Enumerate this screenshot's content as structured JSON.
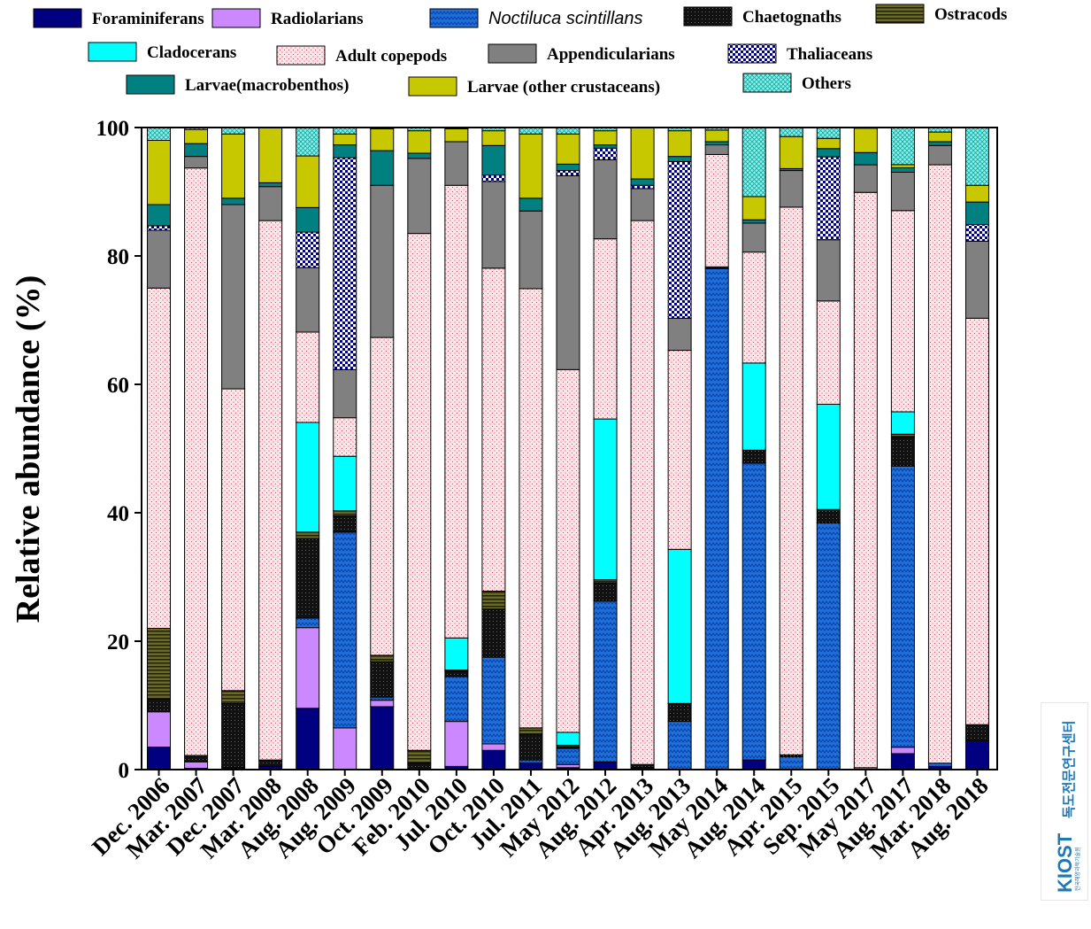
{
  "chart_data": {
    "type": "bar",
    "stacked": true,
    "title": "",
    "xlabel": "",
    "ylabel": "Relative abundance (%)",
    "ylim": [
      0,
      100
    ],
    "yticks": [
      "0",
      "20",
      "40",
      "60",
      "80",
      "100"
    ],
    "legend_position": "top",
    "categories": [
      "Dec. 2006",
      "Mar. 2007",
      "Dec. 2007",
      "Mar. 2008",
      "Aug. 2008",
      "Aug. 2009",
      "Oct. 2009",
      "Feb. 2010",
      "Jul. 2010",
      "Oct. 2010",
      "Jul. 2011",
      "May 2012",
      "Aug. 2012",
      "Apr. 2013",
      "Aug. 2013",
      "May 2014",
      "Aug. 2014",
      "Apr. 2015",
      "Sep. 2015",
      "May 2017",
      "Aug. 2017",
      "Mar. 2018",
      "Aug. 2018"
    ],
    "series": [
      {
        "name": "Foraminiferans",
        "color": "#000080",
        "pattern": "solid",
        "values": [
          3.5,
          0.2,
          0.3,
          0.5,
          9.5,
          0,
          9.8,
          0,
          0.5,
          3,
          1,
          0.3,
          1.2,
          0.3,
          0,
          0,
          1.5,
          0,
          0,
          0,
          2.5,
          0.5,
          4.5
        ]
      },
      {
        "name": "Radiolarians",
        "color": "#cc88ff",
        "pattern": "solid",
        "values": [
          5.5,
          1,
          0,
          0,
          12.5,
          6.5,
          1,
          0,
          7,
          1,
          0,
          0.5,
          0,
          0,
          0,
          0,
          0,
          0,
          0,
          0.3,
          1,
          0,
          0
        ]
      },
      {
        "name": "Noctiluca scintillans",
        "italic": true,
        "color": "#1f6fdb",
        "pattern": "zigzag",
        "values": [
          0,
          0,
          0,
          0,
          1.5,
          30.5,
          0.5,
          0,
          7,
          13.5,
          0.5,
          2.5,
          25,
          0,
          7.5,
          78,
          46,
          2,
          38.7,
          0,
          44,
          0.5,
          0
        ]
      },
      {
        "name": "Chaetognaths",
        "color": "#111111",
        "pattern": "dots",
        "values": [
          2,
          1,
          10,
          1,
          12.3,
          2.5,
          5.5,
          1,
          0.8,
          7.5,
          4,
          0.3,
          2.8,
          0.5,
          2.8,
          0.3,
          2,
          0.3,
          2.1,
          0,
          4.5,
          0,
          2.5
        ]
      },
      {
        "name": "Ostracods",
        "color": "#6b6b1f",
        "pattern": "stripes",
        "values": [
          11,
          0,
          2,
          0,
          1,
          0.8,
          1,
          2,
          0.2,
          2.8,
          1,
          0.2,
          0.5,
          0,
          0,
          0,
          0,
          0,
          0,
          0,
          0.5,
          0,
          0
        ]
      },
      {
        "name": "Cladocerans",
        "color": "#00ffff",
        "pattern": "solid",
        "values": [
          0,
          0,
          0,
          0,
          17,
          8.5,
          0,
          0,
          5,
          0,
          0,
          2,
          25,
          0,
          24,
          0,
          13.5,
          0,
          16.5,
          0,
          3.5,
          0,
          0
        ]
      },
      {
        "name": "Adult copepods",
        "color": "#ffd8de",
        "pattern": "pinkdots",
        "values": [
          53,
          91.5,
          47,
          84,
          14,
          6,
          49.5,
          80.5,
          70.5,
          50.3,
          68.4,
          56.5,
          28,
          84.7,
          31,
          17.5,
          17.2,
          85.3,
          16.2,
          89.6,
          31.5,
          93.2,
          63.3
        ]
      },
      {
        "name": "Appendicularians",
        "color": "#808080",
        "pattern": "solid",
        "values": [
          9,
          1.8,
          28.7,
          5.3,
          10,
          7.5,
          23.7,
          11.7,
          6.8,
          13.5,
          12.1,
          30.2,
          12.3,
          5,
          5,
          1.5,
          4.5,
          5.7,
          9.6,
          4.3,
          6,
          3,
          12
        ]
      },
      {
        "name": "Thaliaceans",
        "color": "#00008b",
        "pattern": "checker",
        "values": [
          0.7,
          0,
          0,
          0,
          5.5,
          33,
          0,
          0,
          0,
          1,
          0,
          0.8,
          1.8,
          0.5,
          24.4,
          0,
          0,
          0,
          13,
          0,
          0,
          0,
          2.6
        ]
      },
      {
        "name": "Larvae(macrobenthos)",
        "color": "#008080",
        "pattern": "solid",
        "values": [
          3.3,
          2,
          1,
          0.6,
          3.8,
          2,
          5.4,
          0.8,
          0,
          4.6,
          2,
          1,
          0.5,
          1,
          0.8,
          0.5,
          0.5,
          0.3,
          1.3,
          1.9,
          0.7,
          0.6,
          3.5
        ]
      },
      {
        "name": "Larvae (other crustaceans)",
        "color": "#c8c800",
        "pattern": "solid",
        "values": [
          10,
          2.2,
          10,
          8.6,
          8,
          1.7,
          3.4,
          3.5,
          2,
          2.3,
          10,
          4.7,
          2.2,
          8,
          4,
          1.8,
          3.6,
          5,
          1.6,
          3.8,
          0.5,
          1.5,
          2.6
        ]
      },
      {
        "name": "Others",
        "color": "#44e0d8",
        "pattern": "crosshatch",
        "values": [
          2,
          0.3,
          1,
          0,
          4.4,
          1,
          0.2,
          0.5,
          0.2,
          0.5,
          1,
          1,
          0.5,
          0,
          0.5,
          0.4,
          10.7,
          1.4,
          1.7,
          0.1,
          5.8,
          0.7,
          9
        ]
      }
    ]
  },
  "logo": {
    "kiost": "KIOST",
    "center": "독도전문연구센터",
    "sub": "한국해양과학기술원"
  }
}
